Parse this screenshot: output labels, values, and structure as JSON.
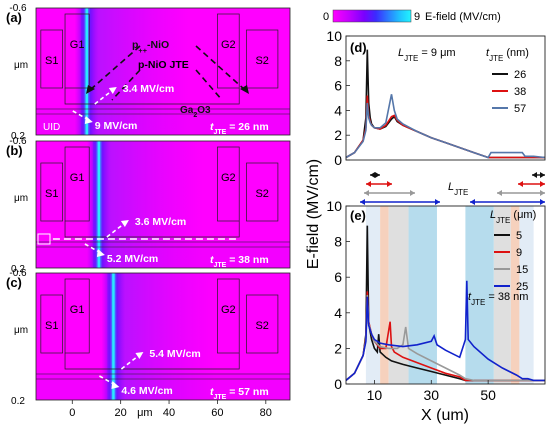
{
  "colorbar": {
    "min_label": "0",
    "max_label": "9",
    "title": "E-field (MV/cm)",
    "colors": [
      "#ff00ff",
      "#d000ff",
      "#a000ff",
      "#6a00ff",
      "#3a2cff",
      "#2a6cff",
      "#1fb0ff",
      "#22f0ff"
    ]
  },
  "left_panels": {
    "y_unit": "μm",
    "x_unit": "μm",
    "x_ticks": [
      "0",
      "20",
      "40",
      "60",
      "80"
    ],
    "x_tick_values": [
      0,
      20,
      40,
      60,
      80
    ],
    "xlim": [
      -15,
      90
    ],
    "background": "#ff00ff",
    "panels": [
      {
        "id": "a",
        "label": "(a)",
        "y_top": "-0.6",
        "y_bottom": "0.2",
        "labels": [
          "S1",
          "G1",
          "G2",
          "S2",
          "p++-NiO",
          "p-NiO JTE",
          "Ga2O3",
          "UID"
        ],
        "annotations": [
          "3.4 MV/cm",
          "9 MV/cm"
        ],
        "tjte_label": "tJTE = 26 nm",
        "jte_thickness_nm": 26,
        "hot_x_um": 6
      },
      {
        "id": "b",
        "label": "(b)",
        "y_top": "-0.6",
        "y_bottom": "0.2",
        "labels": [
          "S1",
          "G1",
          "G2",
          "S2"
        ],
        "annotations": [
          "3.6 MV/cm",
          "5.2 MV/cm"
        ],
        "tjte_label": "tJTE = 38 nm",
        "jte_thickness_nm": 38,
        "hot_x_um": 11
      },
      {
        "id": "c",
        "label": "(c)",
        "y_top": "-0.6",
        "y_bottom": "0.2",
        "labels": [
          "S1",
          "G1",
          "G2",
          "S2"
        ],
        "annotations": [
          "5.4 MV/cm",
          "4.6 MV/cm"
        ],
        "tjte_label": "tJTE = 57 nm",
        "jte_thickness_nm": 57,
        "hot_x_um": 17
      }
    ]
  },
  "chart_data": [
    {
      "type": "line",
      "panel": "(d)",
      "title": "LJTE = 9 μm",
      "xlabel": "",
      "ylabel": "E-field (MV/cm)",
      "ylim": [
        0,
        10
      ],
      "xlim": [
        0,
        70
      ],
      "yticks": [
        0,
        2,
        4,
        6,
        8,
        10
      ],
      "legend_title": "tJTE (nm)",
      "legend_position": "right",
      "series": [
        {
          "name": "26",
          "color": "#111111",
          "x": [
            0,
            3,
            6,
            7,
            7.5,
            8,
            8.5,
            9,
            10,
            12,
            14,
            16,
            17,
            18,
            20,
            25,
            30,
            35,
            40,
            45,
            50,
            51,
            52,
            55,
            60,
            62,
            63,
            64,
            66,
            70
          ],
          "y": [
            0.2,
            0.6,
            1.6,
            3.4,
            8.9,
            4.6,
            3.4,
            2.9,
            2.6,
            2.5,
            2.7,
            3.3,
            3.5,
            3.1,
            2.8,
            2.3,
            1.8,
            1.4,
            1.0,
            0.6,
            0.2,
            0.2,
            0.2,
            0.2,
            0.2,
            0.2,
            0.2,
            0.2,
            0.2,
            0.2
          ]
        },
        {
          "name": "38",
          "color": "#dd1111",
          "x": [
            0,
            3,
            6,
            7,
            7.5,
            8,
            8.5,
            9,
            10,
            12,
            14,
            16,
            17,
            18,
            20,
            25,
            30,
            35,
            40,
            45,
            50,
            51,
            52,
            55,
            60,
            62,
            63,
            64,
            66,
            70
          ],
          "y": [
            0.2,
            0.6,
            1.6,
            2.6,
            5.2,
            3.6,
            3.1,
            2.8,
            2.6,
            2.5,
            2.8,
            3.5,
            3.6,
            3.2,
            2.8,
            2.3,
            1.8,
            1.4,
            1.0,
            0.6,
            0.2,
            0.2,
            0.2,
            0.2,
            0.2,
            0.2,
            0.2,
            0.2,
            0.2,
            0.2
          ]
        },
        {
          "name": "57",
          "color": "#5577aa",
          "x": [
            0,
            3,
            6,
            7,
            7.5,
            8,
            8.5,
            9,
            10,
            12,
            14,
            16,
            17,
            18,
            20,
            25,
            30,
            35,
            40,
            45,
            50,
            51,
            52,
            55,
            60,
            62,
            63,
            64,
            66,
            70
          ],
          "y": [
            0.2,
            0.6,
            1.5,
            2.4,
            4.6,
            3.4,
            3.0,
            2.8,
            2.6,
            2.6,
            3.0,
            5.3,
            4.0,
            3.3,
            2.9,
            2.3,
            1.8,
            1.4,
            1.0,
            0.6,
            0.2,
            0.6,
            0.6,
            0.6,
            0.6,
            0.6,
            0.3,
            0.3,
            0.3,
            0.2
          ]
        }
      ]
    },
    {
      "type": "line",
      "panel": "(e)",
      "title": "",
      "xlabel": "X (um)",
      "ylabel": "E-field (MV/cm)",
      "ylim": [
        0,
        10
      ],
      "xlim": [
        0,
        70
      ],
      "yticks": [
        0,
        2,
        4,
        6,
        8,
        10
      ],
      "xticks": [
        10,
        30,
        50
      ],
      "legend_title": "LJTE (μm)",
      "legend_position": "top-right",
      "annotation": "tJTE = 38 nm",
      "bracket_label": "LJTE",
      "shaded_regions": [
        {
          "from": 7,
          "to": 12,
          "color": "#dde9f5"
        },
        {
          "from": 12,
          "to": 15,
          "color": "#f4c9b2"
        },
        {
          "from": 15,
          "to": 22,
          "color": "#d9d9d9"
        },
        {
          "from": 22,
          "to": 32,
          "color": "#a9d6ea"
        },
        {
          "from": 42,
          "to": 52,
          "color": "#a9d6ea"
        },
        {
          "from": 52,
          "to": 58,
          "color": "#d9d9d9"
        },
        {
          "from": 58,
          "to": 61,
          "color": "#f4c9b2"
        },
        {
          "from": 61,
          "to": 66,
          "color": "#dde9f5"
        }
      ],
      "series": [
        {
          "name": "5",
          "color": "#111111",
          "x": [
            0,
            3,
            6,
            7,
            7.5,
            8,
            9,
            10,
            11,
            11.5,
            12,
            14,
            16,
            20,
            25,
            30,
            35,
            40,
            42,
            45,
            50,
            60,
            70
          ],
          "y": [
            0.2,
            0.6,
            1.6,
            2.8,
            8.9,
            3.4,
            2.5,
            2.0,
            1.8,
            2.8,
            1.8,
            1.5,
            1.3,
            1.1,
            0.9,
            0.7,
            0.5,
            0.3,
            0.2,
            0.2,
            0.2,
            0.2,
            0.2
          ]
        },
        {
          "name": "9",
          "color": "#dd1111",
          "x": [
            0,
            3,
            6,
            7,
            7.5,
            8,
            9,
            10,
            12,
            14,
            15.5,
            16,
            17,
            20,
            25,
            30,
            35,
            40,
            42,
            45,
            50,
            60,
            70
          ],
          "y": [
            0.2,
            0.6,
            1.6,
            2.6,
            5.2,
            3.5,
            2.8,
            2.4,
            2.0,
            2.0,
            3.5,
            2.1,
            1.8,
            1.5,
            1.2,
            0.9,
            0.6,
            0.4,
            0.2,
            0.2,
            0.2,
            0.2,
            0.2
          ]
        },
        {
          "name": "15",
          "color": "#999999",
          "x": [
            0,
            3,
            6,
            7,
            7.5,
            8,
            9,
            10,
            12,
            15,
            18,
            20,
            21,
            22,
            25,
            30,
            35,
            40,
            42,
            45,
            50,
            60,
            70
          ],
          "y": [
            0.2,
            0.6,
            1.6,
            2.5,
            5.0,
            3.4,
            2.8,
            2.4,
            2.1,
            2.0,
            2.0,
            2.2,
            3.2,
            2.0,
            1.7,
            1.3,
            0.9,
            0.5,
            0.3,
            0.2,
            0.2,
            0.2,
            0.2
          ]
        },
        {
          "name": "25",
          "color": "#1122cc",
          "x": [
            0,
            3,
            6,
            7,
            7.5,
            8,
            9,
            10,
            12,
            15,
            20,
            25,
            30,
            31,
            32,
            35,
            40,
            42,
            42.5,
            43,
            45,
            50,
            55,
            60,
            62,
            64,
            66,
            70
          ],
          "y": [
            0.2,
            0.6,
            1.6,
            2.4,
            4.9,
            3.3,
            2.8,
            2.5,
            2.3,
            2.2,
            2.1,
            2.2,
            2.4,
            2.7,
            2.2,
            1.9,
            1.5,
            2.5,
            5.8,
            2.5,
            2.1,
            1.4,
            0.9,
            0.5,
            0.3,
            0.3,
            0.2,
            0.2
          ]
        }
      ]
    }
  ]
}
